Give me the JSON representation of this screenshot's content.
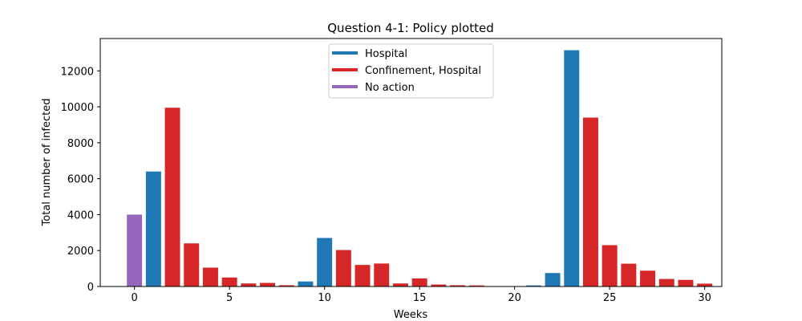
{
  "chart_data": {
    "type": "bar",
    "title": "Question 4-1: Policy plotted",
    "xlabel": "Weeks",
    "ylabel": "Total number of infected",
    "xlim": [
      -1.8,
      30.9
    ],
    "ylim": [
      0,
      13800
    ],
    "xticks": [
      0,
      5,
      10,
      15,
      20,
      25,
      30
    ],
    "yticks": [
      0,
      2000,
      4000,
      6000,
      8000,
      10000,
      12000
    ],
    "grid": false,
    "legend_position": "top-center",
    "legend": [
      {
        "label": "Hospital",
        "color": "#1f77b4"
      },
      {
        "label": "Confinement, Hospital",
        "color": "#d62728"
      },
      {
        "label": "No action",
        "color": "#9467bd"
      }
    ],
    "bars": [
      {
        "x": 0,
        "value": 4000,
        "policy": "No action"
      },
      {
        "x": 1,
        "value": 6400,
        "policy": "Hospital"
      },
      {
        "x": 2,
        "value": 9950,
        "policy": "Confinement, Hospital"
      },
      {
        "x": 3,
        "value": 2400,
        "policy": "Confinement, Hospital"
      },
      {
        "x": 4,
        "value": 1050,
        "policy": "Confinement, Hospital"
      },
      {
        "x": 5,
        "value": 500,
        "policy": "Confinement, Hospital"
      },
      {
        "x": 6,
        "value": 170,
        "policy": "Confinement, Hospital"
      },
      {
        "x": 7,
        "value": 200,
        "policy": "Confinement, Hospital"
      },
      {
        "x": 8,
        "value": 70,
        "policy": "Confinement, Hospital"
      },
      {
        "x": 9,
        "value": 280,
        "policy": "Hospital"
      },
      {
        "x": 10,
        "value": 2700,
        "policy": "Hospital"
      },
      {
        "x": 11,
        "value": 2030,
        "policy": "Confinement, Hospital"
      },
      {
        "x": 12,
        "value": 1200,
        "policy": "Confinement, Hospital"
      },
      {
        "x": 13,
        "value": 1280,
        "policy": "Confinement, Hospital"
      },
      {
        "x": 14,
        "value": 170,
        "policy": "Confinement, Hospital"
      },
      {
        "x": 15,
        "value": 450,
        "policy": "Confinement, Hospital"
      },
      {
        "x": 16,
        "value": 110,
        "policy": "Confinement, Hospital"
      },
      {
        "x": 17,
        "value": 70,
        "policy": "Confinement, Hospital"
      },
      {
        "x": 18,
        "value": 60,
        "policy": "Confinement, Hospital"
      },
      {
        "x": 21,
        "value": 60,
        "policy": "Hospital"
      },
      {
        "x": 22,
        "value": 750,
        "policy": "Hospital"
      },
      {
        "x": 23,
        "value": 13150,
        "policy": "Hospital"
      },
      {
        "x": 24,
        "value": 9400,
        "policy": "Confinement, Hospital"
      },
      {
        "x": 25,
        "value": 2300,
        "policy": "Confinement, Hospital"
      },
      {
        "x": 26,
        "value": 1270,
        "policy": "Confinement, Hospital"
      },
      {
        "x": 27,
        "value": 880,
        "policy": "Confinement, Hospital"
      },
      {
        "x": 28,
        "value": 420,
        "policy": "Confinement, Hospital"
      },
      {
        "x": 29,
        "value": 370,
        "policy": "Confinement, Hospital"
      },
      {
        "x": 30,
        "value": 160,
        "policy": "Confinement, Hospital"
      }
    ]
  }
}
